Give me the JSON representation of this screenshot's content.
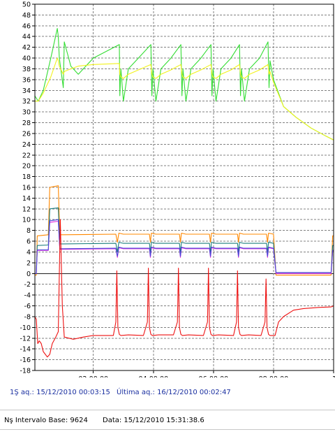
{
  "chart_data": {
    "type": "line",
    "title": "",
    "xlabel": "",
    "ylabel": "",
    "ylim": [
      -18,
      50
    ],
    "yticks": [
      50,
      48,
      46,
      44,
      42,
      40,
      38,
      36,
      34,
      32,
      30,
      28,
      26,
      24,
      22,
      20,
      18,
      16,
      14,
      12,
      10,
      8,
      6,
      4,
      2,
      0,
      -2,
      -4,
      -6,
      -8,
      -10,
      -12,
      -14,
      -16,
      -18
    ],
    "xlim": [
      "00:03:15",
      "10:00:00"
    ],
    "xticks": [
      "02:00:00",
      "04:00:00",
      "06:00:00",
      "08:00:00",
      "10:0"
    ],
    "grid": true,
    "series": [
      {
        "color": "#33dd33",
        "x": [
          "00:03",
          "00:10",
          "00:20",
          "00:35",
          "00:48",
          "00:50",
          "00:52",
          "01:00",
          "01:02",
          "01:15",
          "01:30",
          "02:00",
          "02:52",
          "02:53",
          "02:55",
          "03:00",
          "03:10",
          "03:30",
          "03:55",
          "03:57",
          "03:59",
          "04:05",
          "04:15",
          "04:35",
          "04:55",
          "04:57",
          "04:59",
          "05:05",
          "05:15",
          "05:35",
          "05:55",
          "05:57",
          "05:59",
          "06:05",
          "06:15",
          "06:35",
          "06:52",
          "06:54",
          "06:56",
          "07:02",
          "07:12",
          "07:32",
          "07:49",
          "07:51",
          "07:53",
          "08:00",
          "08:20",
          "08:45",
          "09:15",
          "09:45",
          "10:00"
        ],
        "values": [
          33,
          32,
          34,
          40,
          45.5,
          44,
          40,
          34.5,
          43,
          38.5,
          37,
          40,
          42.5,
          33,
          38,
          32,
          38,
          40,
          42.5,
          33,
          38,
          32,
          38,
          40,
          42.5,
          33,
          38,
          32,
          38,
          40,
          42.5,
          33,
          38,
          32,
          38,
          40,
          42.5,
          33,
          38,
          32,
          38,
          40,
          43,
          34.5,
          39.5,
          36,
          31,
          29,
          27,
          25.5,
          24.8
        ]
      },
      {
        "color": "#f2f21a",
        "x": [
          "00:03",
          "00:10",
          "00:20",
          "00:35",
          "00:48",
          "00:50",
          "00:52",
          "01:00",
          "01:02",
          "01:15",
          "01:30",
          "02:00",
          "02:52",
          "02:53",
          "02:55",
          "03:00",
          "03:10",
          "03:30",
          "03:55",
          "03:57",
          "03:59",
          "04:05",
          "04:15",
          "04:35",
          "04:55",
          "04:57",
          "04:59",
          "05:05",
          "05:15",
          "05:35",
          "05:55",
          "05:57",
          "05:59",
          "06:05",
          "06:15",
          "06:35",
          "06:52",
          "06:54",
          "06:56",
          "07:02",
          "07:12",
          "07:32",
          "07:49",
          "07:51",
          "07:53",
          "08:00",
          "08:20",
          "08:45",
          "09:15",
          "09:45",
          "10:00"
        ],
        "values": [
          32,
          32,
          33.5,
          36.5,
          40,
          39.5,
          38.5,
          37,
          37.5,
          38,
          38.5,
          38.8,
          39,
          37,
          36.5,
          36.2,
          37,
          37.8,
          38.8,
          37,
          36.5,
          36.2,
          37,
          37.8,
          38.8,
          37,
          36.5,
          36.2,
          37,
          37.8,
          38.8,
          37,
          36.5,
          36.2,
          37,
          37.8,
          38.8,
          37,
          36.5,
          36.2,
          37,
          37.8,
          38.8,
          37,
          37.5,
          35.5,
          31,
          29,
          27,
          25.5,
          24.8
        ]
      },
      {
        "color": "#ff8800",
        "x": [
          "00:03",
          "00:06",
          "00:08",
          "00:30",
          "00:33",
          "00:50",
          "00:53",
          "01:00",
          "02:45",
          "02:48",
          "02:51",
          "03:00",
          "03:52",
          "03:54",
          "03:56",
          "04:05",
          "04:52",
          "04:54",
          "04:56",
          "05:05",
          "05:52",
          "05:54",
          "05:56",
          "06:05",
          "06:48",
          "06:50",
          "06:52",
          "07:00",
          "07:46",
          "07:48",
          "07:50",
          "08:00",
          "08:05",
          "09:55",
          "09:58",
          "10:00"
        ],
        "values": [
          -0.3,
          -0.3,
          7,
          7.2,
          16,
          16.3,
          7.2,
          7.2,
          7.3,
          5.8,
          7.5,
          7.3,
          7.3,
          5.8,
          7.5,
          7.3,
          7.3,
          5.8,
          7.5,
          7.3,
          7.3,
          5.8,
          7.5,
          7.3,
          7.3,
          5.8,
          7.5,
          7.3,
          7.3,
          5.8,
          7.5,
          7.3,
          -0.3,
          -0.3,
          7,
          7
        ]
      },
      {
        "color": "#1a7d7d",
        "x": [
          "00:03",
          "00:06",
          "00:08",
          "00:30",
          "00:33",
          "00:50",
          "00:53",
          "01:00",
          "02:45",
          "02:48",
          "02:51",
          "03:00",
          "03:52",
          "03:54",
          "03:56",
          "04:05",
          "04:52",
          "04:54",
          "04:56",
          "05:05",
          "05:52",
          "05:54",
          "05:56",
          "06:05",
          "06:48",
          "06:50",
          "06:52",
          "07:00",
          "07:46",
          "07:48",
          "07:50",
          "08:00",
          "08:05",
          "09:55",
          "09:58",
          "10:00"
        ],
        "values": [
          0,
          0,
          5.2,
          5.3,
          12,
          12.2,
          5.5,
          5.5,
          5.6,
          4,
          5.8,
          5.6,
          5.6,
          4,
          5.8,
          5.6,
          5.6,
          4,
          5.8,
          5.6,
          5.6,
          4,
          5.8,
          5.6,
          5.6,
          4,
          5.8,
          5.6,
          5.6,
          4,
          5.8,
          5.6,
          0,
          0,
          5.2,
          5.2
        ]
      },
      {
        "color": "#dd22dd",
        "x": [
          "00:03",
          "00:06",
          "00:08",
          "00:30",
          "00:33",
          "00:50",
          "00:53",
          "01:00",
          "02:45",
          "02:48",
          "02:51",
          "03:00",
          "03:52",
          "03:54",
          "03:56",
          "04:05",
          "04:52",
          "04:54",
          "04:56",
          "05:05",
          "05:52",
          "05:54",
          "05:56",
          "06:05",
          "06:48",
          "06:50",
          "06:52",
          "07:00",
          "07:46",
          "07:48",
          "07:50",
          "08:00",
          "08:05",
          "09:55",
          "09:58",
          "10:00"
        ],
        "values": [
          0,
          0,
          4.3,
          4.3,
          9.5,
          9.7,
          4.5,
          4.5,
          4.6,
          3,
          4.8,
          4.6,
          4.6,
          3,
          4.8,
          4.6,
          4.6,
          3,
          4.8,
          4.6,
          4.6,
          3,
          4.8,
          4.6,
          4.6,
          3,
          4.8,
          4.6,
          4.6,
          3,
          4.8,
          4.6,
          0,
          0,
          4.2,
          4.2
        ]
      },
      {
        "color": "#4a4ad8",
        "x": [
          "00:03",
          "00:06",
          "00:08",
          "00:30",
          "00:33",
          "00:50",
          "00:53",
          "01:00",
          "02:45",
          "02:48",
          "02:51",
          "03:00",
          "03:52",
          "03:54",
          "03:56",
          "04:05",
          "04:52",
          "04:54",
          "04:56",
          "05:05",
          "05:52",
          "05:54",
          "05:56",
          "06:05",
          "06:48",
          "06:50",
          "06:52",
          "07:00",
          "07:46",
          "07:48",
          "07:50",
          "08:00",
          "08:05",
          "09:55",
          "09:58",
          "10:00"
        ],
        "values": [
          0,
          0,
          4.4,
          4.4,
          9.8,
          10,
          4.6,
          4.6,
          4.7,
          3.2,
          4.9,
          4.7,
          4.7,
          3.2,
          4.9,
          4.7,
          4.7,
          3.2,
          4.9,
          4.7,
          4.7,
          3.2,
          4.9,
          4.7,
          4.7,
          3.2,
          4.9,
          4.7,
          4.7,
          3.2,
          4.9,
          4.7,
          0.2,
          0.2,
          4.3,
          4.3
        ]
      },
      {
        "color": "#ee1111",
        "x": [
          "00:03",
          "00:06",
          "00:09",
          "00:12",
          "00:16",
          "00:20",
          "00:28",
          "00:33",
          "00:38",
          "00:45",
          "00:50",
          "00:54",
          "00:58",
          "01:02",
          "01:20",
          "01:40",
          "02:00",
          "02:20",
          "02:40",
          "02:45",
          "02:47",
          "02:49",
          "02:52",
          "02:55",
          "03:10",
          "03:40",
          "03:48",
          "03:50",
          "03:52",
          "03:55",
          "03:58",
          "04:10",
          "04:40",
          "04:48",
          "04:50",
          "04:52",
          "04:55",
          "04:58",
          "05:10",
          "05:40",
          "05:48",
          "05:50",
          "05:52",
          "05:55",
          "05:58",
          "06:10",
          "06:40",
          "06:46",
          "06:48",
          "06:50",
          "06:53",
          "06:56",
          "07:10",
          "07:35",
          "07:43",
          "07:45",
          "07:47",
          "07:50",
          "07:53",
          "08:03",
          "08:10",
          "08:20",
          "08:40",
          "09:00",
          "09:30",
          "09:55",
          "10:00"
        ],
        "values": [
          -8,
          -8.5,
          -13,
          -12.5,
          -13,
          -14.5,
          -15.5,
          -15,
          -13,
          -11.8,
          -10.8,
          10,
          -6,
          -11.8,
          -12.2,
          -11.8,
          -11.5,
          -11.5,
          -11.5,
          -9,
          0.5,
          -10,
          -11.3,
          -11.5,
          -11.4,
          -11.5,
          -9,
          1,
          -10,
          -11.3,
          -11.5,
          -11.4,
          -11.4,
          -9,
          1,
          -10,
          -11.3,
          -11.5,
          -11.4,
          -11.5,
          -9,
          1,
          -10,
          -11.3,
          -11.5,
          -11.4,
          -11.5,
          -9,
          0.5,
          -10,
          -11.3,
          -11.5,
          -11.4,
          -11.5,
          -9,
          -1,
          -10,
          -11.3,
          -11.5,
          -11.5,
          -9,
          -8,
          -6.8,
          -6.5,
          -6.3,
          -6.2,
          -6
        ]
      }
    ]
  },
  "status": {
    "first_acq": "1Ş aq.: 15/12/2010 00:03:15",
    "last_acq": "Última aq.: 16/12/2010 00:02:47",
    "interval_base": "Nş Intervalo Base: 9624",
    "date": "Data: 15/12/2010 15:31:38.6"
  },
  "colors": {
    "acq_text": "#1a2fa0",
    "grid": "#808080",
    "grid_zero": "#1e1e1e"
  }
}
